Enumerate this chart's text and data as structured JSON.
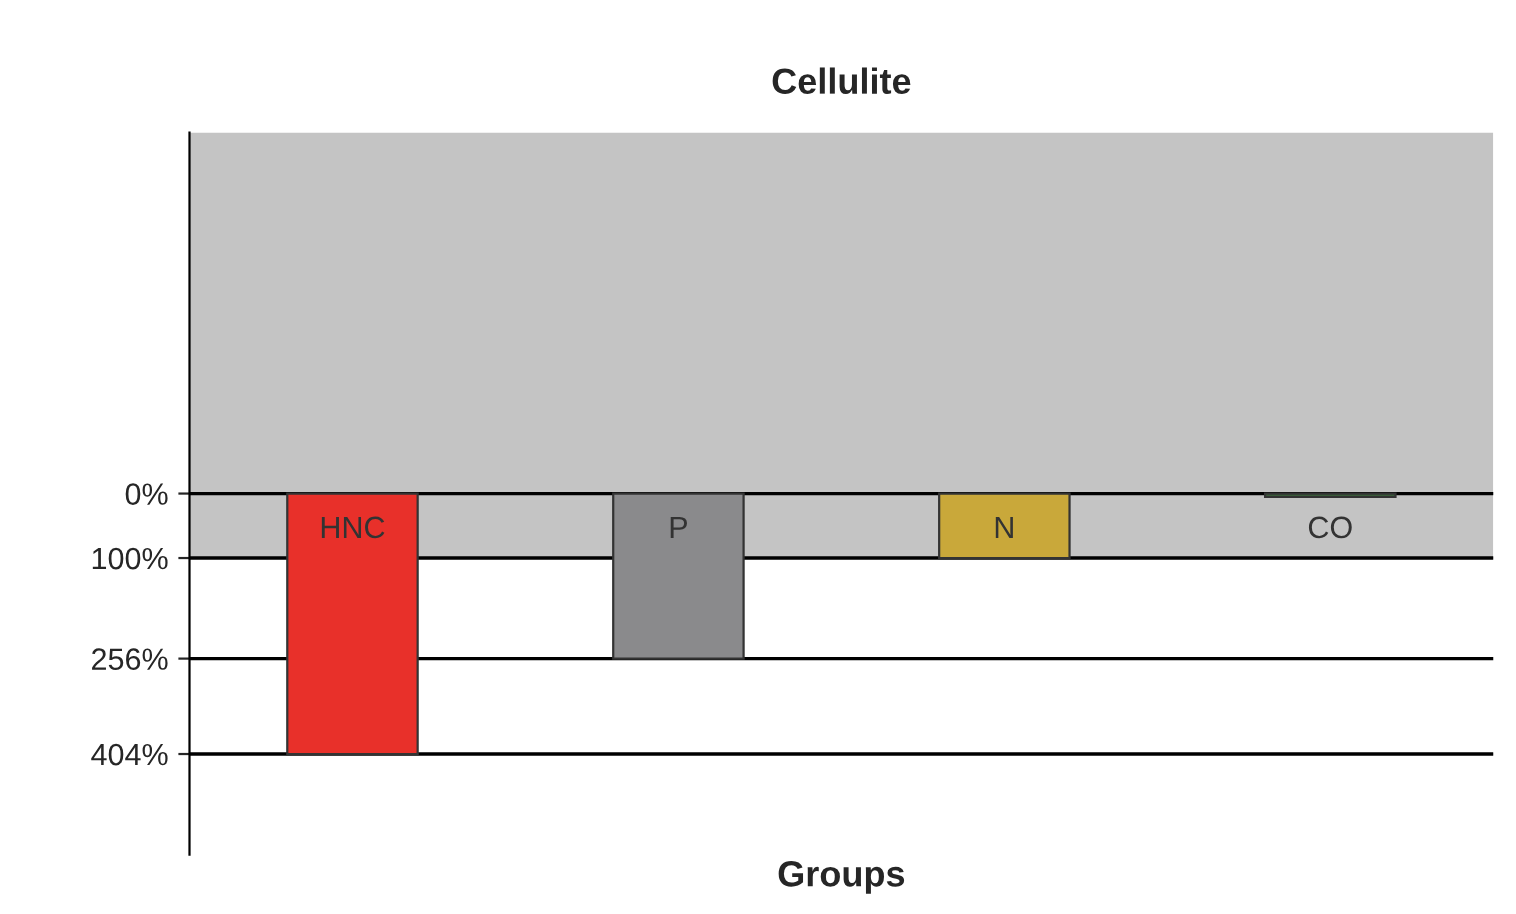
{
  "chart_data": {
    "type": "bar",
    "title": "Cellulite",
    "xlabel": "Groups",
    "categories": [
      "HNC",
      "P",
      "N",
      "CO"
    ],
    "values": [
      404,
      256,
      100,
      5
    ],
    "colors": [
      "#e8302a",
      "#8a8a8c",
      "#c9a83a",
      "#3d6b3d"
    ],
    "ylim": [
      560,
      -560
    ],
    "yticks": [
      {
        "value": 0,
        "label": "0%"
      },
      {
        "value": 100,
        "label": "100%"
      },
      {
        "value": 256,
        "label": "256%"
      },
      {
        "value": 404,
        "label": "404%"
      }
    ],
    "bands": [
      {
        "axis": "y",
        "from": -560,
        "to": 100,
        "color": "#c4c4c4"
      }
    ],
    "grid": "y",
    "tick_labels": "y"
  }
}
